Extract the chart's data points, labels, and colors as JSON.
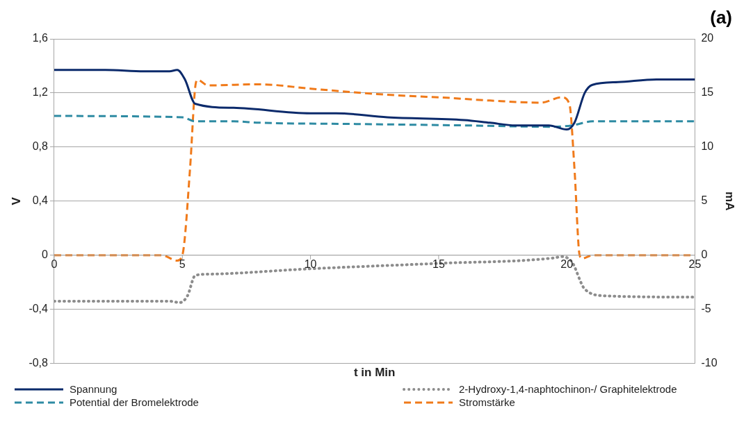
{
  "chart_data": {
    "type": "line",
    "title": "(a)",
    "xlabel": "t in Min",
    "ylabel": "V",
    "y2label": "mA",
    "xlim": [
      0,
      25
    ],
    "xticks": [
      0,
      5,
      10,
      15,
      20,
      25
    ],
    "ylim": [
      -0.8,
      1.6
    ],
    "yticks": [
      {
        "value": -0.8,
        "label": "-0,8"
      },
      {
        "value": -0.4,
        "label": "-0,4"
      },
      0,
      {
        "value": 0.4,
        "label": "0,4"
      },
      {
        "value": 0.8,
        "label": "0,8"
      },
      {
        "value": 1.2,
        "label": "1,2"
      },
      {
        "value": 1.6,
        "label": "1,6"
      }
    ],
    "y2lim": [
      -10,
      20
    ],
    "y2ticks": [
      -10,
      -5,
      0,
      5,
      10,
      15,
      20
    ],
    "grid": "y",
    "legend": "bottom",
    "marker": "none",
    "series": [
      {
        "name": "Spannung",
        "color": "#0b2a6b",
        "line_style": "solid",
        "x": [
          0,
          2,
          3.5,
          4.5,
          4.8,
          5.1,
          5.5,
          7,
          10,
          11,
          13,
          16,
          17,
          18,
          19.3,
          20,
          20.3,
          20.7,
          21,
          22,
          23.5,
          25
        ],
        "values": [
          1.37,
          1.37,
          1.36,
          1.36,
          1.37,
          1.3,
          1.12,
          1.09,
          1.05,
          1.05,
          1.02,
          1.0,
          0.98,
          0.96,
          0.96,
          0.93,
          0.98,
          1.2,
          1.26,
          1.28,
          1.3,
          1.3
        ]
      },
      {
        "name": "2-Hydroxy-1,4-naphtochinon-/ Graphitelektrode",
        "color": "#8c8c8c",
        "line_style": "dotted",
        "x": [
          0,
          4.5,
          4.9,
          5.2,
          5.5,
          6,
          10,
          15,
          19.5,
          19.8,
          20.2,
          20.7,
          21.5,
          25
        ],
        "values": [
          -0.34,
          -0.34,
          -0.35,
          -0.3,
          -0.15,
          -0.14,
          -0.1,
          -0.06,
          -0.02,
          -0.01,
          -0.05,
          -0.25,
          -0.3,
          -0.31
        ]
      },
      {
        "name": "Potential der Bromelektrode",
        "color": "#2e8ba3",
        "line_style": "dashed",
        "x": [
          0,
          5,
          5.5,
          7,
          8,
          12,
          16,
          19.5,
          20.2,
          21,
          25
        ],
        "values": [
          1.03,
          1.02,
          0.99,
          0.99,
          0.98,
          0.97,
          0.96,
          0.95,
          0.96,
          0.99,
          0.99
        ]
      },
      {
        "name": "Stromstärke",
        "color": "#f07a1a",
        "line_style": "dashed",
        "axis": "y2",
        "x": [
          0,
          4.2,
          4.8,
          5.0,
          5.3,
          5.5,
          5.6,
          6,
          8,
          10,
          12,
          14,
          15,
          17,
          19,
          19.8,
          20.1,
          20.3,
          20.5,
          20.6,
          21,
          25
        ],
        "values": [
          0,
          0,
          -0.5,
          0,
          8,
          15.5,
          16.2,
          15.7,
          15.8,
          15.4,
          15.0,
          14.7,
          14.6,
          14.3,
          14.1,
          14.6,
          14.0,
          8,
          0,
          -0.3,
          0,
          0
        ]
      }
    ]
  }
}
